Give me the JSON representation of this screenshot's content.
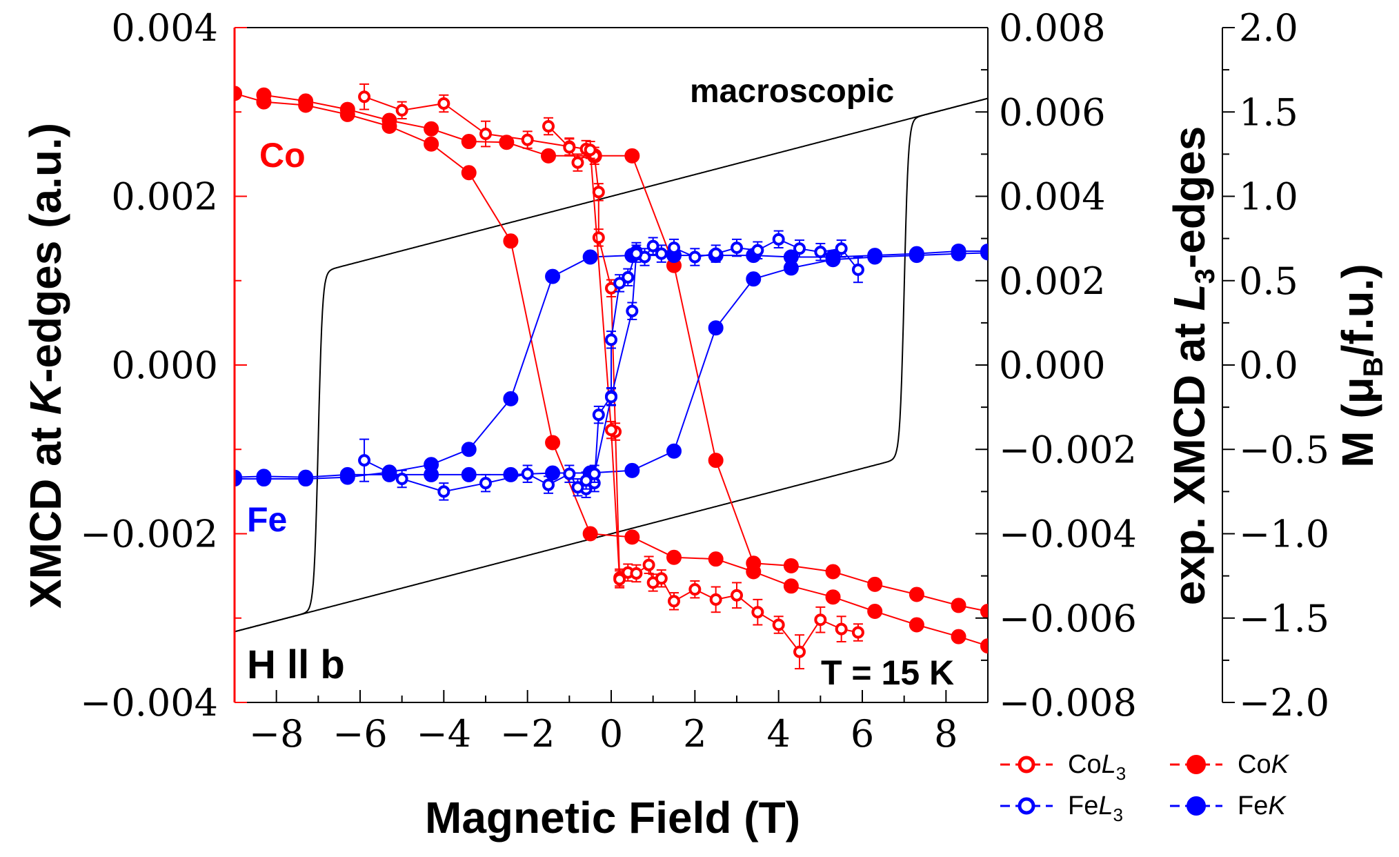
{
  "chart_data": {
    "type": "scatter",
    "title": "",
    "xlabel": "Magnetic Field (T)",
    "xlim": [
      -9,
      9
    ],
    "xticks": [
      -8,
      -6,
      -4,
      -2,
      0,
      2,
      4,
      6,
      8
    ],
    "x_tick_labels": [
      "−8",
      "−6",
      "−4",
      "−2",
      "0",
      "2",
      "4",
      "6",
      "8"
    ],
    "y_left": {
      "label_parts": [
        "XMCD at ",
        "K",
        "-edges (a.u.)"
      ],
      "ylim": [
        -0.004,
        0.004
      ],
      "ticks": [
        -0.004,
        -0.002,
        0.0,
        0.002,
        0.004
      ],
      "tick_labels": [
        "−0.004",
        "−0.002",
        "0.000",
        "0.002",
        "0.004"
      ],
      "color": "#ff0000"
    },
    "y_right1": {
      "label_parts": [
        "exp. XMCD at ",
        "L",
        "3",
        "-edges"
      ],
      "ylim": [
        -0.008,
        0.008
      ],
      "ticks": [
        -0.008,
        -0.006,
        -0.004,
        -0.002,
        0.0,
        0.002,
        0.004,
        0.006,
        0.008
      ],
      "tick_labels": [
        "−0.008",
        "−0.006",
        "−0.004",
        "−0.002",
        "0.000",
        "0.002",
        "0.004",
        "0.006",
        "0.008"
      ]
    },
    "y_right2": {
      "label_parts": [
        "M (",
        "μ",
        "B",
        "/f.u.)"
      ],
      "ylim": [
        -2.0,
        2.0
      ],
      "ticks": [
        -2.0,
        -1.5,
        -1.0,
        -0.5,
        0.0,
        0.5,
        1.0,
        1.5,
        2.0
      ],
      "tick_labels": [
        "−2.0",
        "−1.5",
        "−1.0",
        "−0.5",
        "0.0",
        "0.5",
        "1.0",
        "1.5",
        "2.0"
      ]
    },
    "annotations": {
      "co_label": "Co",
      "fe_label": "Fe",
      "macroscopic": "macroscopic",
      "field_direction": "H ll b",
      "temperature": "T = 15 K"
    },
    "legend": [
      {
        "element": "Co",
        "edge": "L",
        "sub": "3",
        "color": "#ff0000",
        "filled": false
      },
      {
        "element": "Co",
        "edge": "K",
        "sub": "",
        "color": "#ff0000",
        "filled": true
      },
      {
        "element": "Fe",
        "edge": "L",
        "sub": "3",
        "color": "#0000ff",
        "filled": false
      },
      {
        "element": "Fe",
        "edge": "K",
        "sub": "",
        "color": "#0000ff",
        "filled": true
      }
    ],
    "series": [
      {
        "name": "CoK (down sweep)",
        "axis": "left",
        "color": "#ff0000",
        "filled": true,
        "points": [
          [
            -8.3,
            0.0032
          ],
          [
            -7.3,
            0.00313
          ],
          [
            -6.3,
            0.00303
          ],
          [
            -5.3,
            0.0029
          ],
          [
            -4.3,
            0.0028
          ],
          [
            -3.4,
            0.00265
          ],
          [
            -2.5,
            0.00264
          ],
          [
            -1.5,
            0.00248
          ],
          [
            -0.4,
            0.00248
          ],
          [
            0.5,
            0.00248
          ],
          [
            1.5,
            0.00118
          ],
          [
            2.5,
            -0.00113
          ],
          [
            3.4,
            -0.00235
          ],
          [
            4.3,
            -0.00238
          ],
          [
            5.3,
            -0.00245
          ],
          [
            6.3,
            -0.0026
          ],
          [
            7.3,
            -0.00272
          ],
          [
            8.3,
            -0.00285
          ],
          [
            9.0,
            -0.00292
          ]
        ]
      },
      {
        "name": "CoK (up sweep)",
        "axis": "left",
        "color": "#ff0000",
        "filled": true,
        "points": [
          [
            -9.0,
            0.00322
          ],
          [
            -8.3,
            0.00312
          ],
          [
            -7.3,
            0.00308
          ],
          [
            -6.3,
            0.00297
          ],
          [
            -5.3,
            0.00283
          ],
          [
            -4.3,
            0.00262
          ],
          [
            -3.4,
            0.00228
          ],
          [
            -2.4,
            0.00147
          ],
          [
            -1.4,
            -0.00092
          ],
          [
            -0.5,
            -0.002
          ],
          [
            0.5,
            -0.00204
          ],
          [
            1.5,
            -0.00228
          ],
          [
            2.5,
            -0.0023
          ],
          [
            3.4,
            -0.00245
          ],
          [
            4.3,
            -0.00262
          ],
          [
            5.3,
            -0.00275
          ],
          [
            6.3,
            -0.00292
          ],
          [
            7.3,
            -0.00308
          ],
          [
            8.3,
            -0.00322
          ],
          [
            9.0,
            -0.00333
          ]
        ]
      },
      {
        "name": "FeK (down sweep)",
        "axis": "left",
        "color": "#0000ff",
        "filled": true,
        "points": [
          [
            9.0,
            0.00135
          ],
          [
            8.3,
            0.00135
          ],
          [
            7.3,
            0.00132
          ],
          [
            6.3,
            0.0013
          ],
          [
            5.3,
            0.00128
          ],
          [
            4.3,
            0.00128
          ],
          [
            3.4,
            0.0013
          ],
          [
            2.5,
            0.0013
          ],
          [
            1.5,
            0.0013
          ],
          [
            0.5,
            0.0013
          ],
          [
            -0.5,
            0.00128
          ],
          [
            -1.4,
            0.00105
          ],
          [
            -2.4,
            -0.0004
          ],
          [
            -3.4,
            -0.001
          ],
          [
            -4.3,
            -0.00118
          ],
          [
            -5.3,
            -0.00127
          ],
          [
            -6.3,
            -0.00133
          ],
          [
            -7.3,
            -0.00135
          ],
          [
            -8.3,
            -0.00135
          ],
          [
            -9.0,
            -0.00135
          ]
        ]
      },
      {
        "name": "FeK (up sweep)",
        "axis": "left",
        "color": "#0000ff",
        "filled": true,
        "points": [
          [
            -9.0,
            -0.00133
          ],
          [
            -8.3,
            -0.00132
          ],
          [
            -7.3,
            -0.00133
          ],
          [
            -6.3,
            -0.0013
          ],
          [
            -5.3,
            -0.0013
          ],
          [
            -4.3,
            -0.0013
          ],
          [
            -3.4,
            -0.0013
          ],
          [
            -2.4,
            -0.0013
          ],
          [
            -1.4,
            -0.00128
          ],
          [
            -0.5,
            -0.00128
          ],
          [
            0.5,
            -0.00125
          ],
          [
            1.5,
            -0.00102
          ],
          [
            2.5,
            0.00044
          ],
          [
            3.4,
            0.00102
          ],
          [
            4.3,
            0.00115
          ],
          [
            5.3,
            0.00125
          ],
          [
            6.3,
            0.00128
          ],
          [
            7.3,
            0.0013
          ],
          [
            8.3,
            0.00132
          ],
          [
            9.0,
            0.00133
          ]
        ]
      },
      {
        "name": "CoL3 (down sweep)",
        "axis": "right1",
        "color": "#ff0000",
        "filled": false,
        "points": [
          [
            -5.9,
            0.00636,
            0.0003
          ],
          [
            -5.0,
            0.00604,
            0.0002
          ],
          [
            -4.0,
            0.0062,
            0.0002
          ],
          [
            -3.0,
            0.00548,
            0.0003
          ],
          [
            -2.0,
            0.00534,
            0.0002
          ],
          [
            -1.0,
            0.00518,
            0.0002
          ],
          [
            -0.6,
            0.00512,
            0.0002
          ],
          [
            -0.4,
            0.00496,
            0.0002
          ],
          [
            -0.3,
            0.0041,
            0.0002
          ],
          [
            -0.3,
            0.00302,
            0.0002
          ],
          [
            0.0,
            0.00182,
            0.0002
          ],
          [
            0.1,
            -0.00158,
            0.0002
          ],
          [
            0.2,
            -0.00504,
            0.0002
          ],
          [
            0.4,
            -0.00492,
            0.0002
          ],
          [
            0.6,
            -0.00494,
            0.0002
          ],
          [
            0.9,
            -0.00474,
            0.0002
          ],
          [
            1.0,
            -0.00516,
            0.0002
          ],
          [
            1.2,
            -0.00506,
            0.0002
          ],
          [
            1.5,
            -0.0056,
            0.0002
          ],
          [
            2.0,
            -0.00532,
            0.0002
          ],
          [
            2.5,
            -0.00556,
            0.0003
          ],
          [
            3.0,
            -0.00546,
            0.0003
          ],
          [
            3.5,
            -0.00586,
            0.0003
          ],
          [
            4.0,
            -0.00616,
            0.0002
          ],
          [
            4.5,
            -0.0068,
            0.0004
          ],
          [
            5.0,
            -0.00604,
            0.0003
          ],
          [
            5.5,
            -0.00626,
            0.0003
          ],
          [
            5.9,
            -0.00634,
            0.0002
          ]
        ]
      },
      {
        "name": "CoL3 (up sweep)",
        "axis": "right1",
        "color": "#ff0000",
        "filled": false,
        "points": [
          [
            -1.5,
            0.00566,
            0.0002
          ],
          [
            -1.0,
            0.00516,
            0.0002
          ],
          [
            -0.8,
            0.0048,
            0.0002
          ],
          [
            -0.5,
            0.0051,
            0.0002
          ],
          [
            0.0,
            -0.00154,
            0.0002
          ],
          [
            0.2,
            -0.00508,
            0.0002
          ]
        ]
      },
      {
        "name": "FeL3 (down sweep)",
        "axis": "right1",
        "color": "#0000ff",
        "filled": false,
        "points": [
          [
            5.9,
            0.00226,
            0.0003
          ],
          [
            5.5,
            0.00276,
            0.0002
          ],
          [
            5.0,
            0.00268,
            0.0002
          ],
          [
            4.5,
            0.00276,
            0.0002
          ],
          [
            4.0,
            0.00298,
            0.0002
          ],
          [
            3.5,
            0.00272,
            0.0002
          ],
          [
            3.0,
            0.00278,
            0.0002
          ],
          [
            2.5,
            0.00264,
            0.0002
          ],
          [
            2.0,
            0.00256,
            0.0002
          ],
          [
            1.5,
            0.00278,
            0.0002
          ],
          [
            1.2,
            0.00264,
            0.0002
          ],
          [
            1.0,
            0.00282,
            0.0002
          ],
          [
            0.8,
            0.00256,
            0.0002
          ],
          [
            0.6,
            0.0027,
            0.0002
          ],
          [
            0.4,
            0.00208,
            0.0002
          ],
          [
            0.2,
            0.00194,
            0.0002
          ],
          [
            0.0,
            0.0006,
            0.0002
          ],
          [
            0.0,
            -0.00074,
            0.0002
          ],
          [
            -0.3,
            -0.00118,
            0.0002
          ],
          [
            -0.4,
            -0.0028,
            0.0002
          ],
          [
            -0.6,
            -0.00294,
            0.0002
          ],
          [
            -0.8,
            -0.0029,
            0.0002
          ],
          [
            -1.0,
            -0.00258,
            0.0002
          ],
          [
            -1.5,
            -0.00284,
            0.0002
          ],
          [
            -2.0,
            -0.00258,
            0.0002
          ],
          [
            -3.0,
            -0.0028,
            0.0002
          ],
          [
            -4.0,
            -0.003,
            0.0002
          ],
          [
            -5.0,
            -0.0027,
            0.0002
          ],
          [
            -5.9,
            -0.00226,
            0.0005
          ]
        ]
      },
      {
        "name": "FeL3 (up sweep)",
        "axis": "right1",
        "color": "#0000ff",
        "filled": false,
        "points": [
          [
            -0.6,
            -0.00274,
            0.0002
          ],
          [
            -0.4,
            -0.00258,
            0.0002
          ],
          [
            0.0,
            -0.00076,
            0.0002
          ],
          [
            0.5,
            0.00128,
            0.0002
          ],
          [
            0.6,
            0.00264,
            0.0002
          ]
        ]
      },
      {
        "name": "macroscopic M",
        "axis": "right2",
        "color": "#000000",
        "filled": false,
        "line_only": true,
        "loop": {
          "m_linear_at_0": 1.0,
          "slope_per_T": 0.0645,
          "coercive_field": 7.0,
          "width": 0.1
        }
      }
    ]
  }
}
